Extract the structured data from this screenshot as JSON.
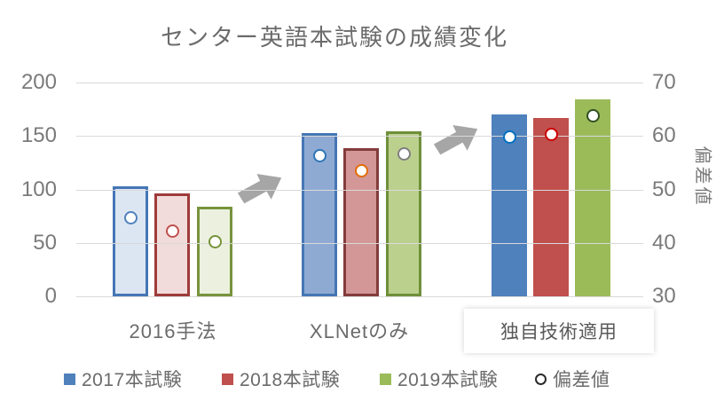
{
  "title": "センター英語本試験の成績変化",
  "chart_data": {
    "type": "bar",
    "title": "センター英語本試験の成績変化",
    "categories": [
      "2016手法",
      "XLNetのみ",
      "独自技術適用"
    ],
    "highlighted_category": "独自技術適用",
    "series": [
      {
        "name": "2017本試験",
        "type": "bar",
        "axis": "left",
        "values": [
          103,
          153,
          170
        ]
      },
      {
        "name": "2018本試験",
        "type": "bar",
        "axis": "left",
        "values": [
          96,
          139,
          167
        ]
      },
      {
        "name": "2019本試験",
        "type": "bar",
        "axis": "left",
        "values": [
          84,
          154,
          184
        ]
      },
      {
        "name": "偏差値",
        "type": "scatter",
        "axis": "right",
        "values": [
          [
            44.8,
            42.4,
            40.3
          ],
          [
            56.4,
            53.6,
            56.8
          ],
          [
            59.9,
            60.4,
            63.9
          ]
        ]
      }
    ],
    "left_axis": {
      "min": 0,
      "max": 200,
      "ticks": [
        0,
        50,
        100,
        150,
        200
      ]
    },
    "right_axis": {
      "min": 30,
      "max": 70,
      "ticks": [
        30,
        40,
        50,
        60,
        70
      ],
      "label": "偏差値"
    },
    "legend": {
      "position": "bottom",
      "items": [
        "2017本試験",
        "2018本試験",
        "2019本試験",
        "偏差値"
      ]
    },
    "grid": true,
    "annotations": [
      "arrow from 2016手法 to XLNetのみ",
      "arrow from XLNetのみ to 独自技術適用"
    ]
  },
  "style": {
    "background": "#FFFFFF",
    "text_color": "#6B6B6B",
    "axis_text_color": "#7A7A7A",
    "gridline_color": "#D9D9D9",
    "arrow_color": "#A6A6A6",
    "bar_fills": [
      [
        "#DCE6F2",
        "#F2DCDB",
        "#EBF1DE"
      ],
      [
        "#8FAAD2",
        "#D29796",
        "#BCD08E"
      ],
      [
        "#4F81BD",
        "#C0504D",
        "#9BBB59"
      ]
    ],
    "bar_borders": [
      [
        "#4576B5",
        "#9E3B3B",
        "#77933C"
      ],
      [
        "#4576B5",
        "#843C3C",
        "#6F8F3B"
      ],
      [
        "#4F81BD",
        "#C0504D",
        "#9BBB59"
      ]
    ],
    "dot_borders": [
      [
        "#4F81BD",
        "#C0504D",
        "#77933C"
      ],
      [
        "#2E75B6",
        "#E36C0A",
        "#7F7F7F"
      ],
      [
        "#0070C0",
        "#CC0000",
        "#2F4F1F"
      ]
    ],
    "legend_swatches": [
      "#4F81BD",
      "#C0504D",
      "#9BBB59"
    ],
    "highlight_box_bg": "#FFFFFF",
    "highlight_text_color": "#595959"
  }
}
